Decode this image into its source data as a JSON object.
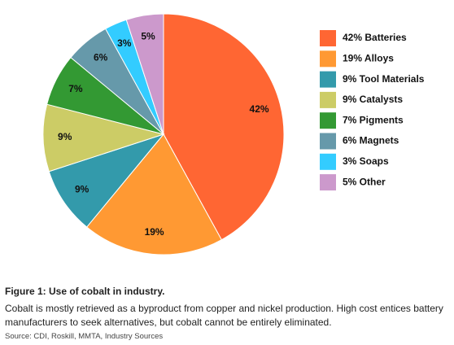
{
  "chart_data": {
    "type": "pie",
    "categories": [
      "42% Batteries",
      "19% Alloys",
      "9% Tool Materials",
      "9% Catalysts",
      "7% Pigments",
      "6% Magnets",
      "3% Soaps",
      "5% Other"
    ],
    "values": [
      42,
      19,
      9,
      9,
      7,
      6,
      3,
      5
    ],
    "value_labels": [
      "42%",
      "19%",
      "9%",
      "9%",
      "7%",
      "6%",
      "3%",
      "5%"
    ],
    "colors": [
      "#ff6633",
      "#ff9933",
      "#339aab",
      "#cccc66",
      "#339933",
      "#6699aa",
      "#33ccff",
      "#cc99cc"
    ],
    "legend": "right"
  },
  "caption": {
    "title": "Figure 1: Use of cobalt in industry.",
    "body_lines": [
      "Cobalt is mostly retrieved as a byproduct from copper and nickel production. High cost entices battery",
      "manufacturers to seek alternatives, but cobalt cannot be entirely eliminated."
    ],
    "source": "Source: CDI, Roskill, MMTA, Industry Sources"
  }
}
